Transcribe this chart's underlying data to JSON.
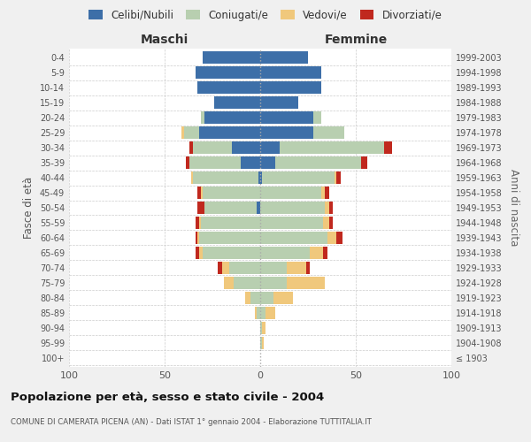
{
  "age_groups": [
    "100+",
    "95-99",
    "90-94",
    "85-89",
    "80-84",
    "75-79",
    "70-74",
    "65-69",
    "60-64",
    "55-59",
    "50-54",
    "45-49",
    "40-44",
    "35-39",
    "30-34",
    "25-29",
    "20-24",
    "15-19",
    "10-14",
    "5-9",
    "0-4"
  ],
  "birth_years": [
    "≤ 1903",
    "1904-1908",
    "1909-1913",
    "1914-1918",
    "1919-1923",
    "1924-1928",
    "1929-1933",
    "1934-1938",
    "1939-1943",
    "1944-1948",
    "1949-1953",
    "1954-1958",
    "1959-1963",
    "1964-1968",
    "1969-1973",
    "1974-1978",
    "1979-1983",
    "1984-1988",
    "1989-1993",
    "1994-1998",
    "1999-2003"
  ],
  "maschi": {
    "celibi": [
      0,
      0,
      0,
      0,
      0,
      0,
      0,
      0,
      0,
      0,
      2,
      0,
      1,
      10,
      15,
      32,
      29,
      24,
      33,
      34,
      30
    ],
    "coniugati": [
      0,
      0,
      0,
      2,
      5,
      14,
      16,
      30,
      32,
      31,
      27,
      30,
      34,
      27,
      20,
      8,
      2,
      0,
      0,
      0,
      0
    ],
    "vedovi": [
      0,
      0,
      0,
      1,
      3,
      5,
      4,
      2,
      1,
      1,
      0,
      1,
      1,
      0,
      0,
      1,
      0,
      0,
      0,
      0,
      0
    ],
    "divorziati": [
      0,
      0,
      0,
      0,
      0,
      0,
      2,
      2,
      1,
      2,
      4,
      2,
      0,
      2,
      2,
      0,
      0,
      0,
      0,
      0,
      0
    ]
  },
  "femmine": {
    "nubili": [
      0,
      0,
      0,
      0,
      0,
      0,
      0,
      0,
      0,
      0,
      0,
      0,
      1,
      8,
      10,
      28,
      28,
      20,
      32,
      32,
      25
    ],
    "coniugate": [
      0,
      1,
      1,
      3,
      7,
      14,
      14,
      26,
      35,
      33,
      34,
      32,
      38,
      45,
      55,
      16,
      4,
      0,
      0,
      0,
      0
    ],
    "vedove": [
      0,
      1,
      2,
      5,
      10,
      20,
      10,
      7,
      5,
      3,
      2,
      2,
      1,
      0,
      0,
      0,
      0,
      0,
      0,
      0,
      0
    ],
    "divorziate": [
      0,
      0,
      0,
      0,
      0,
      0,
      2,
      2,
      3,
      2,
      2,
      2,
      2,
      3,
      4,
      0,
      0,
      0,
      0,
      0,
      0
    ]
  },
  "colors": {
    "celibi": "#3d6fa8",
    "coniugati": "#b8cfb0",
    "vedovi": "#f0c87c",
    "divorziati": "#c0281e"
  },
  "xlim": 100,
  "title": "Popolazione per età, sesso e stato civile - 2004",
  "subtitle": "COMUNE DI CAMERATA PICENA (AN) - Dati ISTAT 1° gennaio 2004 - Elaborazione TUTTITALIA.IT",
  "xlabel_left": "Maschi",
  "xlabel_right": "Femmine",
  "ylabel_left": "Fasce di età",
  "ylabel_right": "Anni di nascita",
  "bg_color": "#f0f0f0",
  "plot_bg": "#ffffff"
}
